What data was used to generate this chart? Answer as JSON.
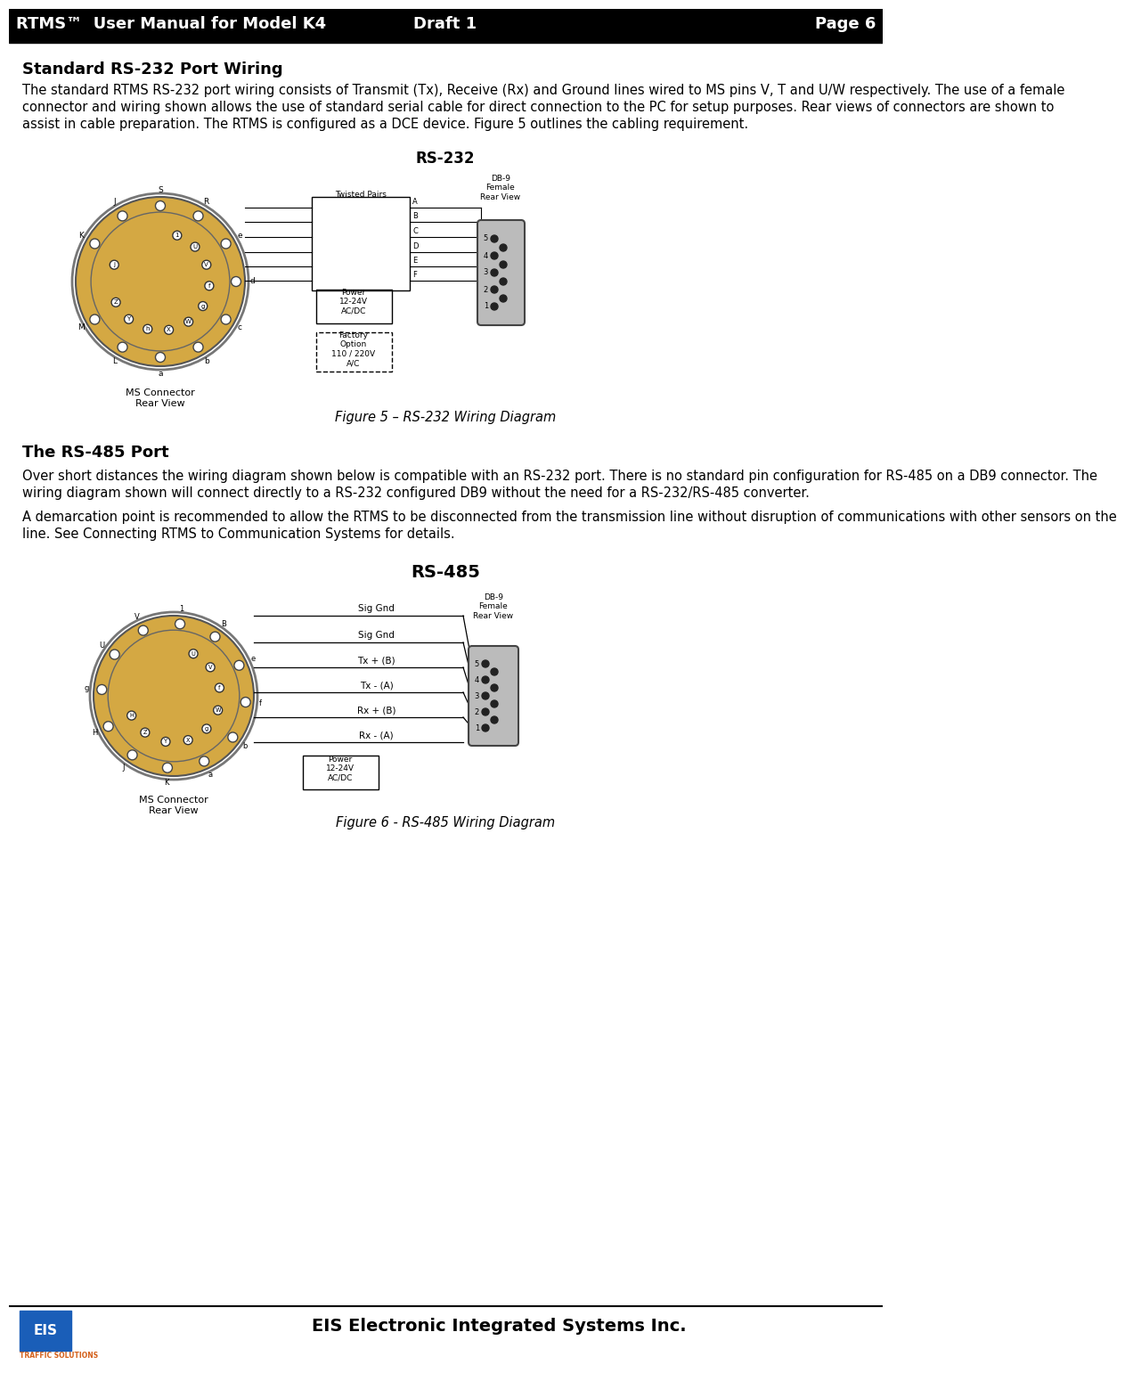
{
  "header_left": "RTMS™  User Manual for Model K4",
  "header_center": "Draft 1",
  "header_right": "Page 6",
  "section1_title": "Standard RS-232 Port Wiring",
  "section1_body": "The standard RTMS RS-232 port wiring consists of Transmit (Tx), Receive (Rx) and Ground lines wired to MS pins V, T and U/W respectively.  The use of a female connector and wiring shown allows the use of standard serial cable for direct connection to the PC for setup purposes. Rear views of connectors are shown to assist in cable preparation.  The RTMS is configured as a DCE device. Figure 5 outlines the cabling requirement.",
  "fig5_title": "RS-232",
  "fig5_caption": "Figure 5 – RS-232 Wiring Diagram",
  "section2_title": "The RS-485 Port",
  "section2_body1": "Over short distances the wiring diagram shown below is compatible with an RS-232 port. There is no standard pin configuration for RS-485 on a DB9 connector.  The wiring diagram shown will connect directly to a RS-232 configured DB9 without the need for a RS-232/RS-485 converter.",
  "section2_body2a": "A demarcation point is recommended to allow the RTMS to be disconnected from the transmission line without disruption of communications with other sensors on the line. See ",
  "section2_body2b": "Connecting RTMS to Communication Systems",
  "section2_body2c": " for details.",
  "fig6_title": "RS-485",
  "fig6_caption": "Figure 6 - RS-485 Wiring Diagram",
  "footer_right": "EIS Electronic Integrated Systems Inc.",
  "bg_color": "#ffffff",
  "header_bg": "#000000",
  "header_text_color": "#ffffff",
  "body_text_color": "#000000",
  "connector_color": "#d4a843",
  "connector_dark": "#8b6914"
}
